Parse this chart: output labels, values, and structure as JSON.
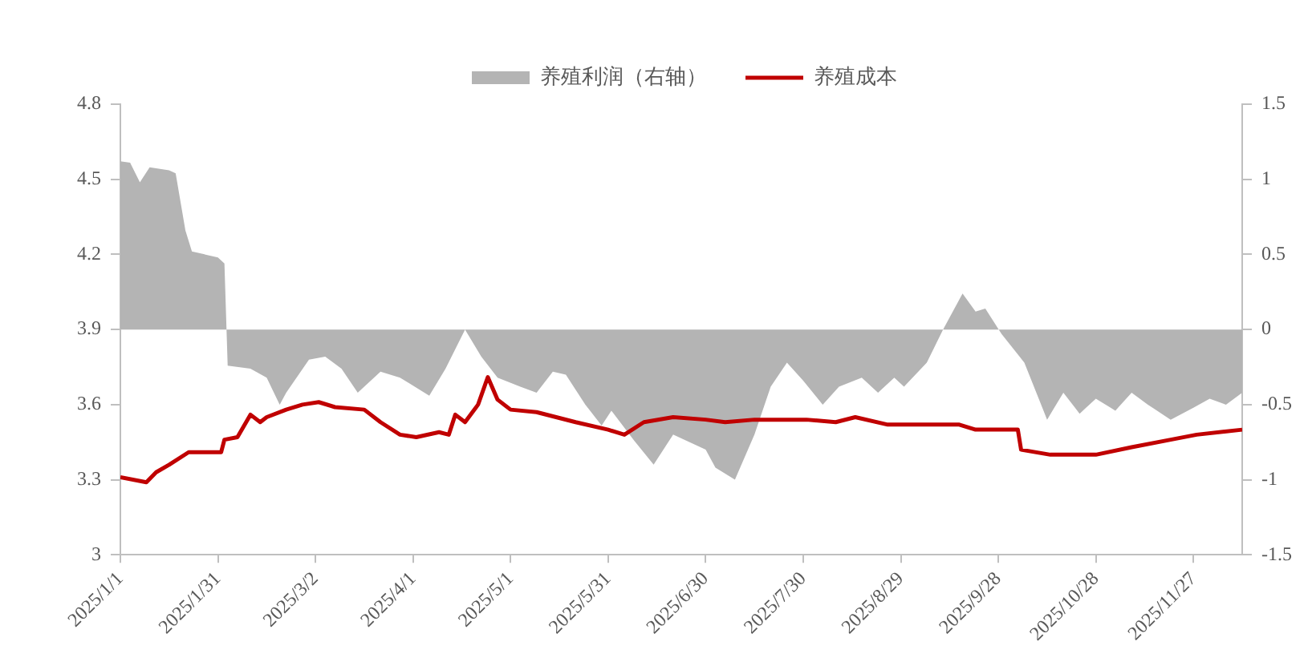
{
  "chart_data": {
    "type": "line",
    "legend": "top",
    "grid": false,
    "marker": "none",
    "line_style": "solid",
    "xlim": [
      "2025-01-01",
      "2025-12-12"
    ],
    "xticks": [
      {
        "value": "2025-01-01",
        "label": "2025/1/1"
      },
      {
        "value": "2025-01-31",
        "label": "2025/1/31"
      },
      {
        "value": "2025-03-02",
        "label": "2025/3/2"
      },
      {
        "value": "2025-04-01",
        "label": "2025/4/1"
      },
      {
        "value": "2025-05-01",
        "label": "2025/5/1"
      },
      {
        "value": "2025-05-31",
        "label": "2025/5/31"
      },
      {
        "value": "2025-06-30",
        "label": "2025/6/30"
      },
      {
        "value": "2025-07-30",
        "label": "2025/7/30"
      },
      {
        "value": "2025-08-29",
        "label": "2025/8/29"
      },
      {
        "value": "2025-09-28",
        "label": "2025/9/28"
      },
      {
        "value": "2025-10-28",
        "label": "2025/10/28"
      },
      {
        "value": "2025-11-27",
        "label": "2025/11/27"
      }
    ],
    "ylim": [
      3,
      4.8
    ],
    "yticks": [
      3,
      3.3,
      3.6,
      3.9,
      4.2,
      4.5,
      4.8
    ],
    "y2lim": [
      -1.5,
      1.5
    ],
    "y2ticks": [
      -1.5,
      -1,
      -0.5,
      0,
      0.5,
      1,
      1.5
    ],
    "series": [
      {
        "name": "养殖利润（右轴）",
        "type": "area",
        "axis": "y2",
        "color": "#b4b4b4",
        "x": [
          "2025-01-01",
          "2025-01-04",
          "2025-01-07",
          "2025-01-10",
          "2025-01-16",
          "2025-01-18",
          "2025-01-21",
          "2025-01-23",
          "2025-01-31",
          "2025-02-02",
          "2025-02-03",
          "2025-02-10",
          "2025-02-15",
          "2025-02-19",
          "2025-02-21",
          "2025-02-28",
          "2025-03-05",
          "2025-03-10",
          "2025-03-15",
          "2025-03-22",
          "2025-03-28",
          "2025-04-06",
          "2025-04-11",
          "2025-04-17",
          "2025-04-22",
          "2025-04-27",
          "2025-05-04",
          "2025-05-09",
          "2025-05-14",
          "2025-05-18",
          "2025-05-24",
          "2025-05-29",
          "2025-06-01",
          "2025-06-08",
          "2025-06-14",
          "2025-06-20",
          "2025-06-30",
          "2025-07-03",
          "2025-07-09",
          "2025-07-15",
          "2025-07-20",
          "2025-07-25",
          "2025-07-30",
          "2025-08-05",
          "2025-08-10",
          "2025-08-17",
          "2025-08-22",
          "2025-08-27",
          "2025-08-30",
          "2025-09-06",
          "2025-09-11",
          "2025-09-17",
          "2025-09-21",
          "2025-09-24",
          "2025-09-29",
          "2025-10-06",
          "2025-10-13",
          "2025-10-18",
          "2025-10-23",
          "2025-10-28",
          "2025-11-03",
          "2025-11-08",
          "2025-11-13",
          "2025-11-20",
          "2025-11-27",
          "2025-12-02",
          "2025-12-07",
          "2025-12-12"
        ],
        "values": [
          1.12,
          1.11,
          0.98,
          1.08,
          1.06,
          1.04,
          0.66,
          0.52,
          0.48,
          0.44,
          -0.24,
          -0.26,
          -0.32,
          -0.5,
          -0.42,
          -0.2,
          -0.18,
          -0.26,
          -0.42,
          -0.28,
          -0.32,
          -0.44,
          -0.26,
          0,
          -0.18,
          -0.32,
          -0.38,
          -0.42,
          -0.28,
          -0.3,
          -0.5,
          -0.64,
          -0.54,
          -0.74,
          -0.9,
          -0.7,
          -0.8,
          -0.92,
          -1.0,
          -0.7,
          -0.38,
          -0.22,
          -0.34,
          -0.5,
          -0.38,
          -0.32,
          -0.42,
          -0.32,
          -0.38,
          -0.22,
          0,
          0.24,
          0.12,
          0.14,
          -0.03,
          -0.22,
          -0.6,
          -0.42,
          -0.56,
          -0.46,
          -0.54,
          -0.42,
          -0.5,
          -0.6,
          -0.52,
          -0.46,
          -0.5,
          -0.42
        ]
      },
      {
        "name": "养殖成本",
        "type": "line",
        "color": "#c00000",
        "x": [
          "2025-01-01",
          "2025-01-09",
          "2025-01-12",
          "2025-01-16",
          "2025-01-22",
          "2025-02-01",
          "2025-02-02",
          "2025-02-06",
          "2025-02-10",
          "2025-02-13",
          "2025-02-15",
          "2025-02-21",
          "2025-02-26",
          "2025-03-03",
          "2025-03-08",
          "2025-03-17",
          "2025-03-22",
          "2025-03-28",
          "2025-04-02",
          "2025-04-09",
          "2025-04-12",
          "2025-04-14",
          "2025-04-17",
          "2025-04-21",
          "2025-04-24",
          "2025-04-27",
          "2025-05-01",
          "2025-05-09",
          "2025-05-21",
          "2025-05-31",
          "2025-06-05",
          "2025-06-11",
          "2025-06-20",
          "2025-06-30",
          "2025-07-06",
          "2025-07-15",
          "2025-07-31",
          "2025-08-09",
          "2025-08-15",
          "2025-08-25",
          "2025-09-16",
          "2025-09-21",
          "2025-10-04",
          "2025-10-05",
          "2025-10-14",
          "2025-10-28",
          "2025-11-08",
          "2025-11-20",
          "2025-11-28",
          "2025-12-12"
        ],
        "values": [
          3.31,
          3.29,
          3.33,
          3.36,
          3.41,
          3.41,
          3.46,
          3.47,
          3.56,
          3.53,
          3.55,
          3.58,
          3.6,
          3.61,
          3.59,
          3.58,
          3.53,
          3.48,
          3.47,
          3.49,
          3.48,
          3.56,
          3.53,
          3.6,
          3.71,
          3.62,
          3.58,
          3.57,
          3.53,
          3.5,
          3.48,
          3.53,
          3.55,
          3.54,
          3.53,
          3.54,
          3.54,
          3.53,
          3.55,
          3.52,
          3.52,
          3.5,
          3.5,
          3.42,
          3.4,
          3.4,
          3.43,
          3.46,
          3.48,
          3.5
        ]
      }
    ]
  }
}
